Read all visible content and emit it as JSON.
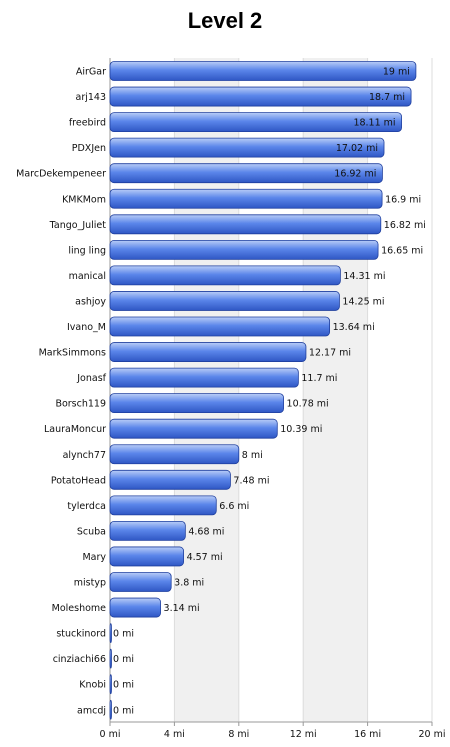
{
  "chart_data": {
    "type": "bar",
    "orientation": "horizontal",
    "title": "Level 2",
    "xlabel": "",
    "ylabel": "",
    "xlim": [
      0,
      20
    ],
    "x_ticks": [
      0,
      4,
      8,
      12,
      16,
      20
    ],
    "tick_unit": "mi",
    "grid": "alternating vertical bands",
    "colors": {
      "bar": "#5b86ea",
      "bar_light": "#b9cdf7",
      "bar_dark": "#2f57c4",
      "band": "#f0f0f0",
      "axis": "#999999"
    },
    "categories": [
      "AirGar",
      "arj143",
      "freebird",
      "PDXJen",
      "MarcDekempeneer",
      "KMKMom",
      "Tango_Juliet",
      "ling ling",
      "manical",
      "ashjoy",
      "Ivano_M",
      "MarkSimmons",
      "Jonasf",
      "Borsch119",
      "LauraMoncur",
      "alynch77",
      "PotatoHead",
      "tylerdca",
      "Scuba",
      "Mary",
      "mistyp",
      "Moleshome",
      "stuckinord",
      "cinziachi66",
      "Knobi",
      "amcdj"
    ],
    "values": [
      19,
      18.7,
      18.11,
      17.02,
      16.92,
      16.9,
      16.82,
      16.65,
      14.31,
      14.25,
      13.64,
      12.17,
      11.7,
      10.78,
      10.39,
      8,
      7.48,
      6.6,
      4.68,
      4.57,
      3.8,
      3.14,
      0,
      0,
      0,
      0
    ],
    "value_labels": [
      "19 mi",
      "18.7 mi",
      "18.11 mi",
      "17.02 mi",
      "16.92 mi",
      "16.9 mi",
      "16.82 mi",
      "16.65 mi",
      "14.31 mi",
      "14.25 mi",
      "13.64 mi",
      "12.17 mi",
      "11.7 mi",
      "10.78 mi",
      "10.39 mi",
      "8 mi",
      "7.48 mi",
      "6.6 mi",
      "4.68 mi",
      "4.57 mi",
      "3.8 mi",
      "3.14 mi",
      "0 mi",
      "0 mi",
      "0 mi",
      "0 mi"
    ],
    "inside_label_count": 5
  }
}
